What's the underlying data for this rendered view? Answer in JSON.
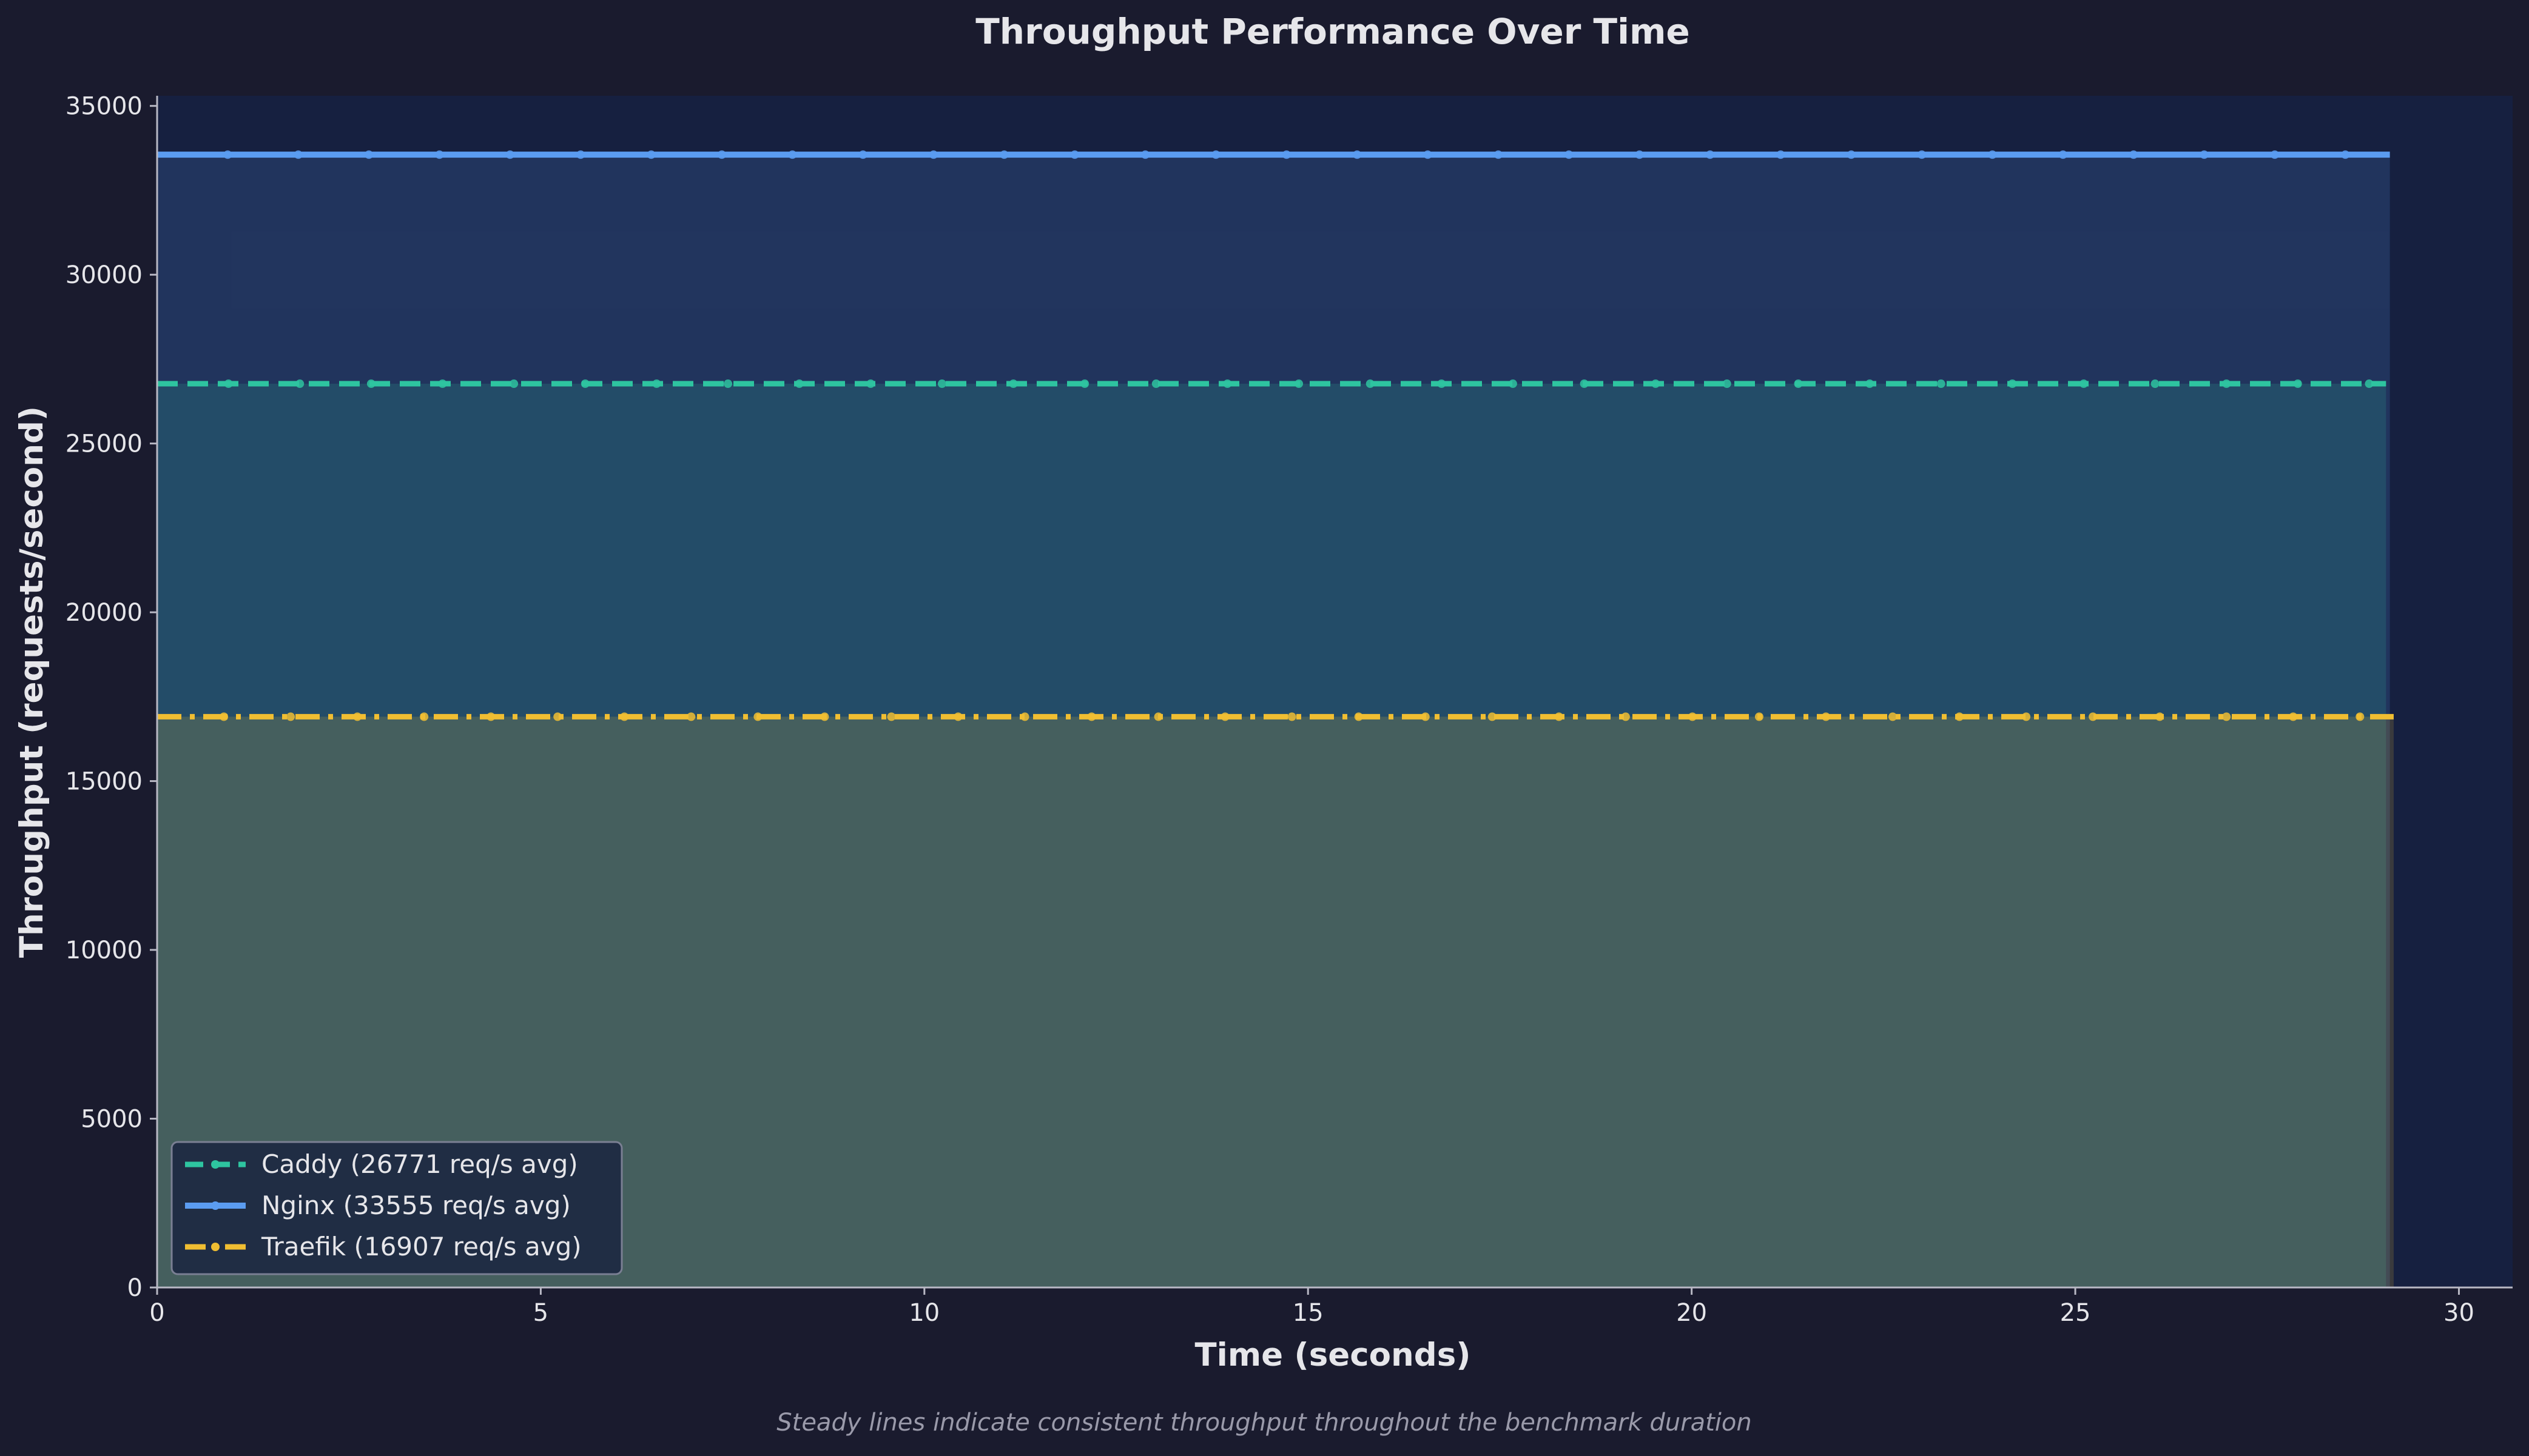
{
  "page": {
    "background_color": "#1a1b2e",
    "plot_background_color": "#162040",
    "text_color": "#e6e6ea",
    "footnote_color": "#9a9aaa"
  },
  "chart_data": {
    "type": "line",
    "title": "Throughput Performance Over Time",
    "xlabel": "Time (seconds)",
    "ylabel": "Throughput (requests/second)",
    "footnote": "Steady lines indicate consistent throughput throughout the benchmark duration",
    "xlim": [
      0,
      30.7
    ],
    "ylim": [
      0,
      35300
    ],
    "x_ticks": [
      0,
      5,
      10,
      15,
      20,
      25,
      30
    ],
    "y_ticks": [
      0,
      5000,
      10000,
      15000,
      20000,
      25000,
      30000,
      35000
    ],
    "grid": false,
    "legend_position": "lower-left",
    "area_fill": true,
    "series": [
      {
        "name": "Caddy (26771 req/s avg)",
        "value": 26771,
        "x_start": 0,
        "x_end": 29.05,
        "color": "#2ec4a0",
        "line_style": "dashed",
        "marker_interval": 0.93
      },
      {
        "name": "Nginx (33555 req/s avg)",
        "value": 33555,
        "x_start": 0,
        "x_end": 29.1,
        "color": "#5b9cf0",
        "line_style": "solid",
        "marker_interval": 0.92
      },
      {
        "name": "Traefik (16907 req/s avg)",
        "value": 16907,
        "x_start": 0,
        "x_end": 29.15,
        "color": "#f0be32",
        "line_style": "dashdot",
        "marker_interval": 0.87
      }
    ]
  }
}
